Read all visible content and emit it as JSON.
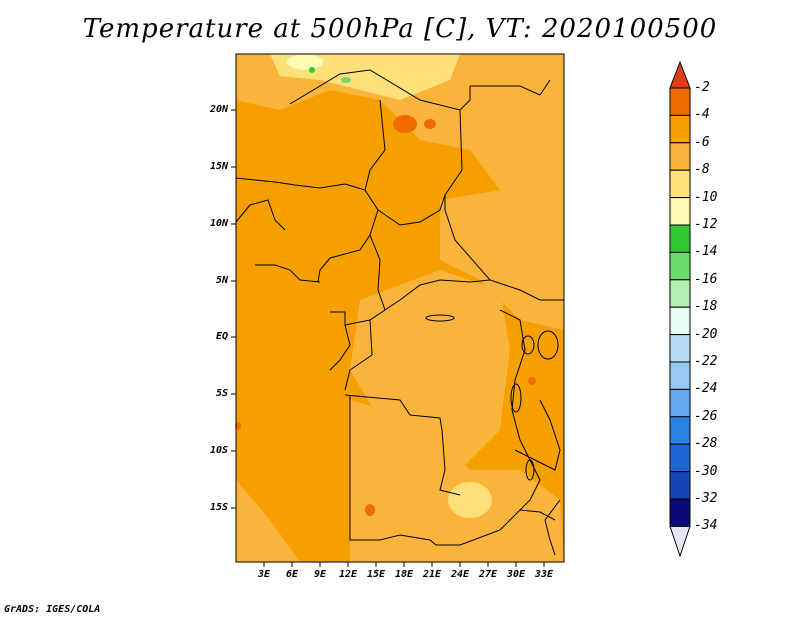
{
  "title": "Temperature at 500hPa [C], VT: 2020100500",
  "credit": "GrADS: IGES/COLA",
  "lat_labels": [
    "20N",
    "15N",
    "10N",
    "5N",
    "EQ",
    "5S",
    "10S",
    "15S"
  ],
  "lon_labels": [
    "3E",
    "6E",
    "9E",
    "12E",
    "15E",
    "18E",
    "21E",
    "24E",
    "27E",
    "30E",
    "33E"
  ],
  "colorbar": {
    "labels": [
      "-2",
      "-4",
      "-6",
      "-8",
      "-10",
      "-12",
      "-14",
      "-16",
      "-18",
      "-20",
      "-22",
      "-24",
      "-26",
      "-28",
      "-30",
      "-32",
      "-34"
    ],
    "colors": [
      "#e03c14",
      "#f06c00",
      "#f5a000",
      "#fab43c",
      "#fde07a",
      "#fffab4",
      "#32c832",
      "#6cdc6c",
      "#b4f0b4",
      "#e6fff5",
      "#b4dcf5",
      "#96c8f5",
      "#64aaf0",
      "#2882e6",
      "#1e64d2",
      "#1446b4",
      "#0a0a78",
      "#e6e6fa"
    ]
  }
}
